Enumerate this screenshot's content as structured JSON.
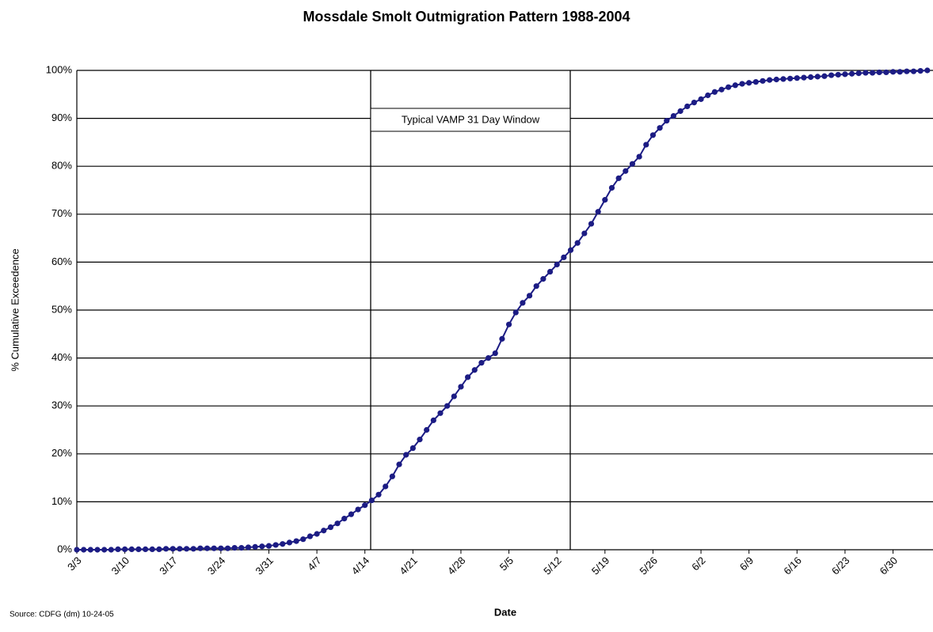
{
  "chart_data": {
    "type": "line",
    "title": "Mossdale Smolt Outmigration Pattern 1988-2004",
    "x_label": "Date",
    "y_label": "% Cumulative Exceedence",
    "annotation": "Typical VAMP 31 Day Window",
    "source": "Source: CDFG (dm) 10-24-05",
    "categories": [
      "3/3",
      null,
      null,
      null,
      null,
      null,
      null,
      "3/10",
      null,
      null,
      null,
      null,
      null,
      null,
      "3/17",
      null,
      null,
      null,
      null,
      null,
      null,
      "3/24",
      null,
      null,
      null,
      null,
      null,
      null,
      "3/31",
      null,
      null,
      null,
      null,
      null,
      null,
      "4/7",
      null,
      null,
      null,
      null,
      null,
      null,
      "4/14",
      null,
      null,
      null,
      null,
      null,
      null,
      "4/21",
      null,
      null,
      null,
      null,
      null,
      null,
      "4/28",
      null,
      null,
      null,
      null,
      null,
      null,
      "5/5",
      null,
      null,
      null,
      null,
      null,
      null,
      "5/12",
      null,
      null,
      null,
      null,
      null,
      null,
      "5/19",
      null,
      null,
      null,
      null,
      null,
      null,
      "5/26",
      null,
      null,
      null,
      null,
      null,
      null,
      "6/2",
      null,
      null,
      null,
      null,
      null,
      null,
      "6/9",
      null,
      null,
      null,
      null,
      null,
      null,
      "6/16",
      null,
      null,
      null,
      null,
      null,
      null,
      "6/23",
      null,
      null,
      null,
      null,
      null,
      null,
      "6/30",
      null,
      null,
      null,
      null,
      null
    ],
    "series": [
      {
        "name": "Cumulative Exceedence",
        "color": "#1c1c84",
        "values": [
          0,
          0,
          0,
          0,
          0,
          0,
          0.1,
          0.1,
          0.1,
          0.1,
          0.1,
          0.1,
          0.1,
          0.2,
          0.2,
          0.2,
          0.2,
          0.2,
          0.3,
          0.3,
          0.3,
          0.3,
          0.3,
          0.4,
          0.4,
          0.5,
          0.6,
          0.7,
          0.8,
          1.0,
          1.2,
          1.5,
          1.8,
          2.2,
          2.8,
          3.3,
          4.0,
          4.7,
          5.5,
          6.5,
          7.4,
          8.4,
          9.3,
          10.3,
          11.5,
          13.2,
          15.3,
          17.8,
          19.8,
          21.2,
          23.0,
          25.0,
          27.0,
          28.5,
          30.0,
          32.0,
          34.0,
          36.0,
          37.5,
          39.0,
          40.0,
          41.0,
          44.0,
          47.0,
          49.5,
          51.5,
          53.0,
          55.0,
          56.5,
          58.0,
          59.5,
          61.0,
          62.5,
          64.0,
          66.0,
          68.0,
          70.5,
          73.0,
          75.5,
          77.5,
          79.0,
          80.5,
          82.0,
          84.5,
          86.5,
          88.0,
          89.5,
          90.5,
          91.5,
          92.5,
          93.3,
          94.0,
          94.8,
          95.5,
          96.0,
          96.5,
          96.9,
          97.2,
          97.4,
          97.6,
          97.8,
          98.0,
          98.1,
          98.2,
          98.3,
          98.4,
          98.5,
          98.6,
          98.7,
          98.8,
          99.0,
          99.1,
          99.2,
          99.3,
          99.4,
          99.5,
          99.5,
          99.6,
          99.6,
          99.7,
          99.7,
          99.8,
          99.8,
          99.9,
          100
        ]
      }
    ],
    "ylim": [
      0,
      100
    ],
    "yticks": [
      {
        "value": 0,
        "label": "0%"
      },
      {
        "value": 10,
        "label": "10%"
      },
      {
        "value": 20,
        "label": "20%"
      },
      {
        "value": 30,
        "label": "30%"
      },
      {
        "value": 40,
        "label": "40%"
      },
      {
        "value": 50,
        "label": "50%"
      },
      {
        "value": 60,
        "label": "60%"
      },
      {
        "value": 70,
        "label": "70%"
      },
      {
        "value": 80,
        "label": "80%"
      },
      {
        "value": 90,
        "label": "90%"
      },
      {
        "value": 100,
        "label": "100%"
      }
    ],
    "grid": true
  }
}
